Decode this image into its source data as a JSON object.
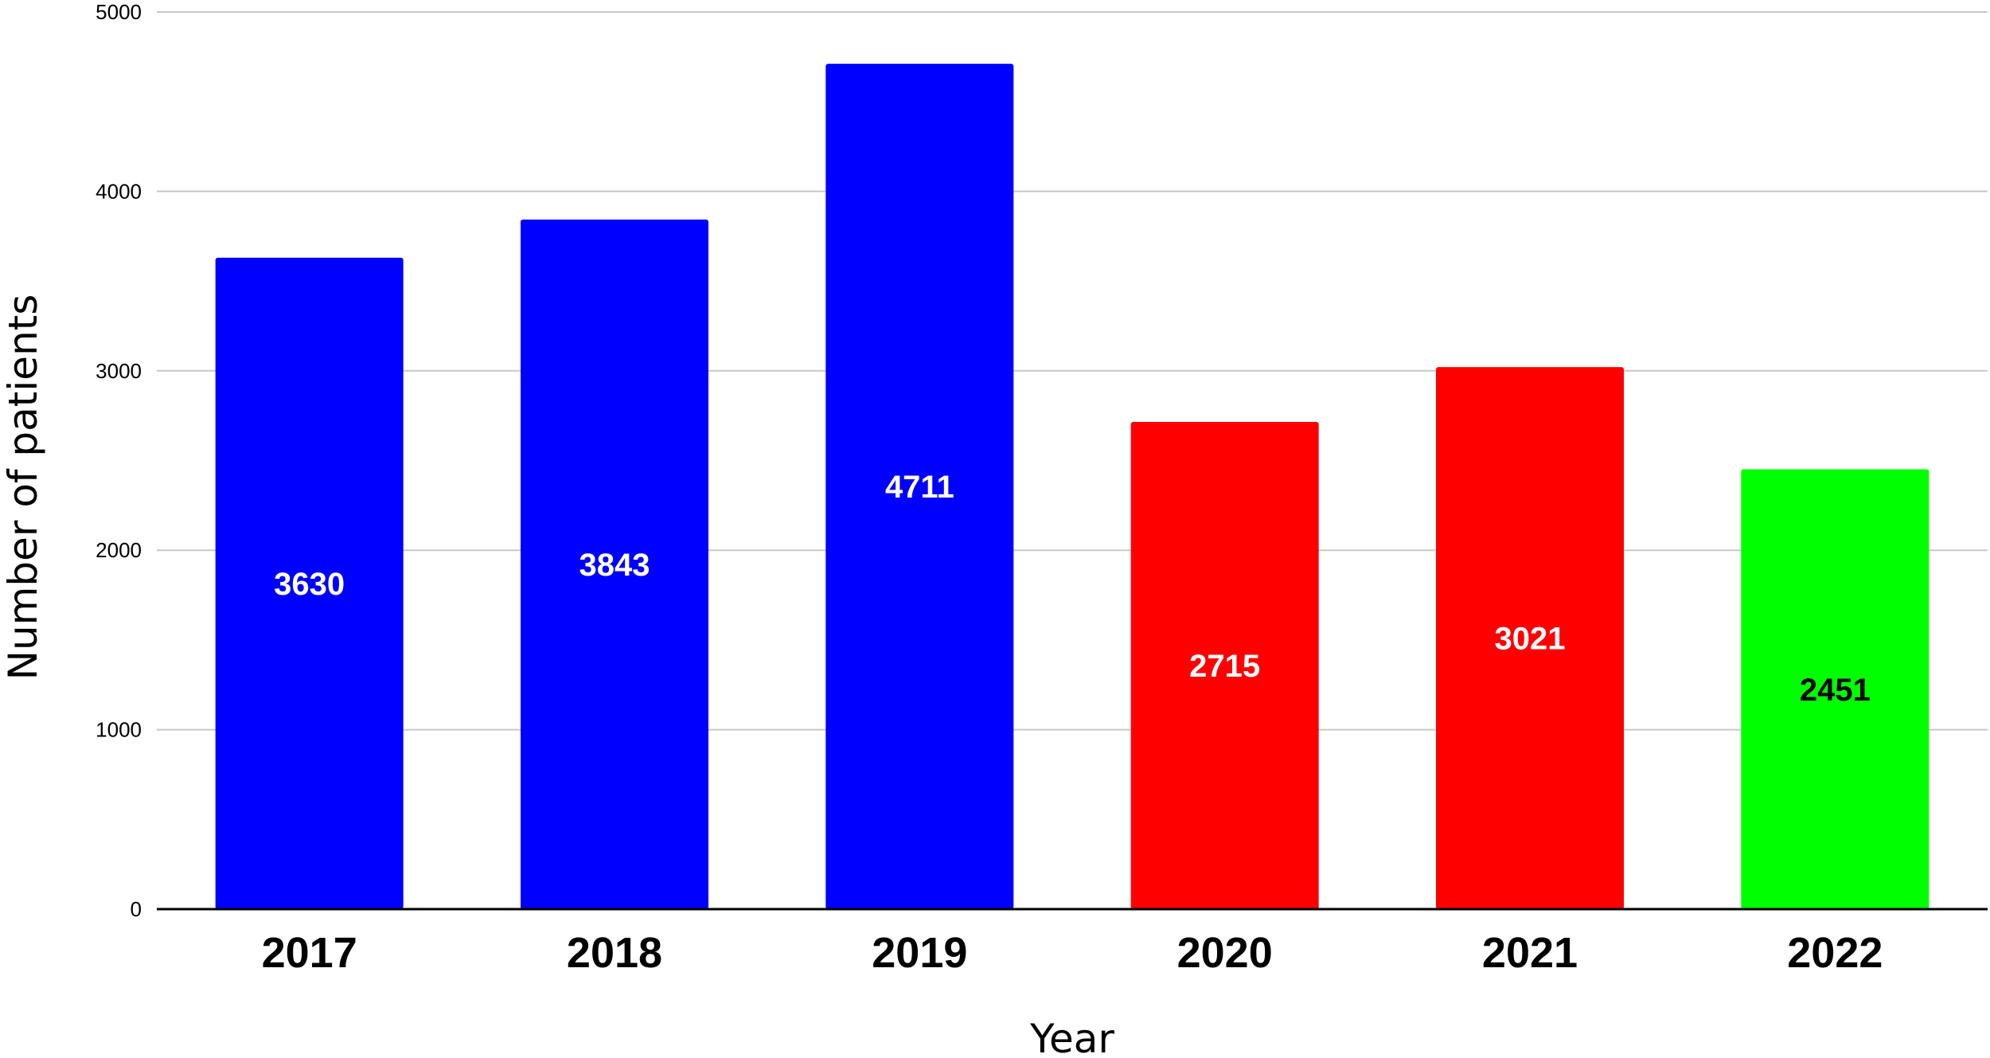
{
  "chart_data": {
    "type": "bar",
    "categories": [
      "2017",
      "2018",
      "2019",
      "2020",
      "2021",
      "2022"
    ],
    "values": [
      3630,
      3843,
      4711,
      2715,
      3021,
      2451
    ],
    "bar_colors": [
      "#0000ff",
      "#0000ff",
      "#0000ff",
      "#ff0000",
      "#ff0000",
      "#00ff00"
    ],
    "label_colors": [
      "#ffffff",
      "#ffffff",
      "#ffffff",
      "#ffffff",
      "#ffffff",
      "#000000"
    ],
    "data_labels": [
      "3630",
      "3843",
      "4711",
      "2715",
      "3021",
      "2451"
    ],
    "xlabel": "Year",
    "ylabel": "Number of patients",
    "ylim": [
      0,
      5000
    ],
    "yticks": [
      "0",
      "1000",
      "2000",
      "3000",
      "4000",
      "5000"
    ],
    "grid": true,
    "legend": false
  }
}
